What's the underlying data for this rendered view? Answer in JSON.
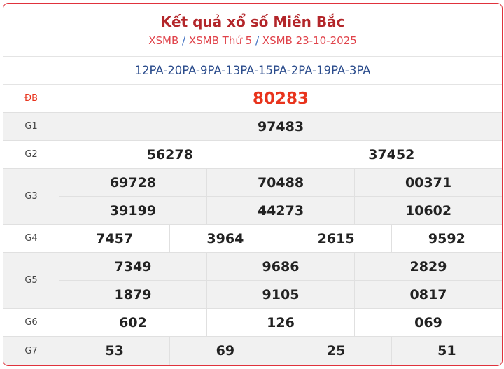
{
  "header": {
    "title": "Kết quả xổ số Miền Bắc",
    "breadcrumb": [
      "XSMB",
      "XSMB Thứ 5",
      "XSMB 23-10-2025"
    ],
    "separator": "/"
  },
  "codes": "12PA-20PA-9PA-13PA-15PA-2PA-19PA-3PA",
  "prizes": [
    {
      "label": "ĐB",
      "lines": [
        [
          "80283"
        ]
      ]
    },
    {
      "label": "G1",
      "lines": [
        [
          "97483"
        ]
      ]
    },
    {
      "label": "G2",
      "lines": [
        [
          "56278",
          "37452"
        ]
      ]
    },
    {
      "label": "G3",
      "lines": [
        [
          "69728",
          "70488",
          "00371"
        ],
        [
          "39199",
          "44273",
          "10602"
        ]
      ]
    },
    {
      "label": "G4",
      "lines": [
        [
          "7457",
          "3964",
          "2615",
          "9592"
        ]
      ]
    },
    {
      "label": "G5",
      "lines": [
        [
          "7349",
          "9686",
          "2829"
        ],
        [
          "1879",
          "9105",
          "0817"
        ]
      ]
    },
    {
      "label": "G6",
      "lines": [
        [
          "602",
          "126",
          "069"
        ]
      ]
    },
    {
      "label": "G7",
      "lines": [
        [
          "53",
          "69",
          "25",
          "51"
        ]
      ]
    }
  ],
  "colors": {
    "border": "#e0323c",
    "title": "#b3262a",
    "special": "#e8331c",
    "codes": "#2b4c8c"
  }
}
